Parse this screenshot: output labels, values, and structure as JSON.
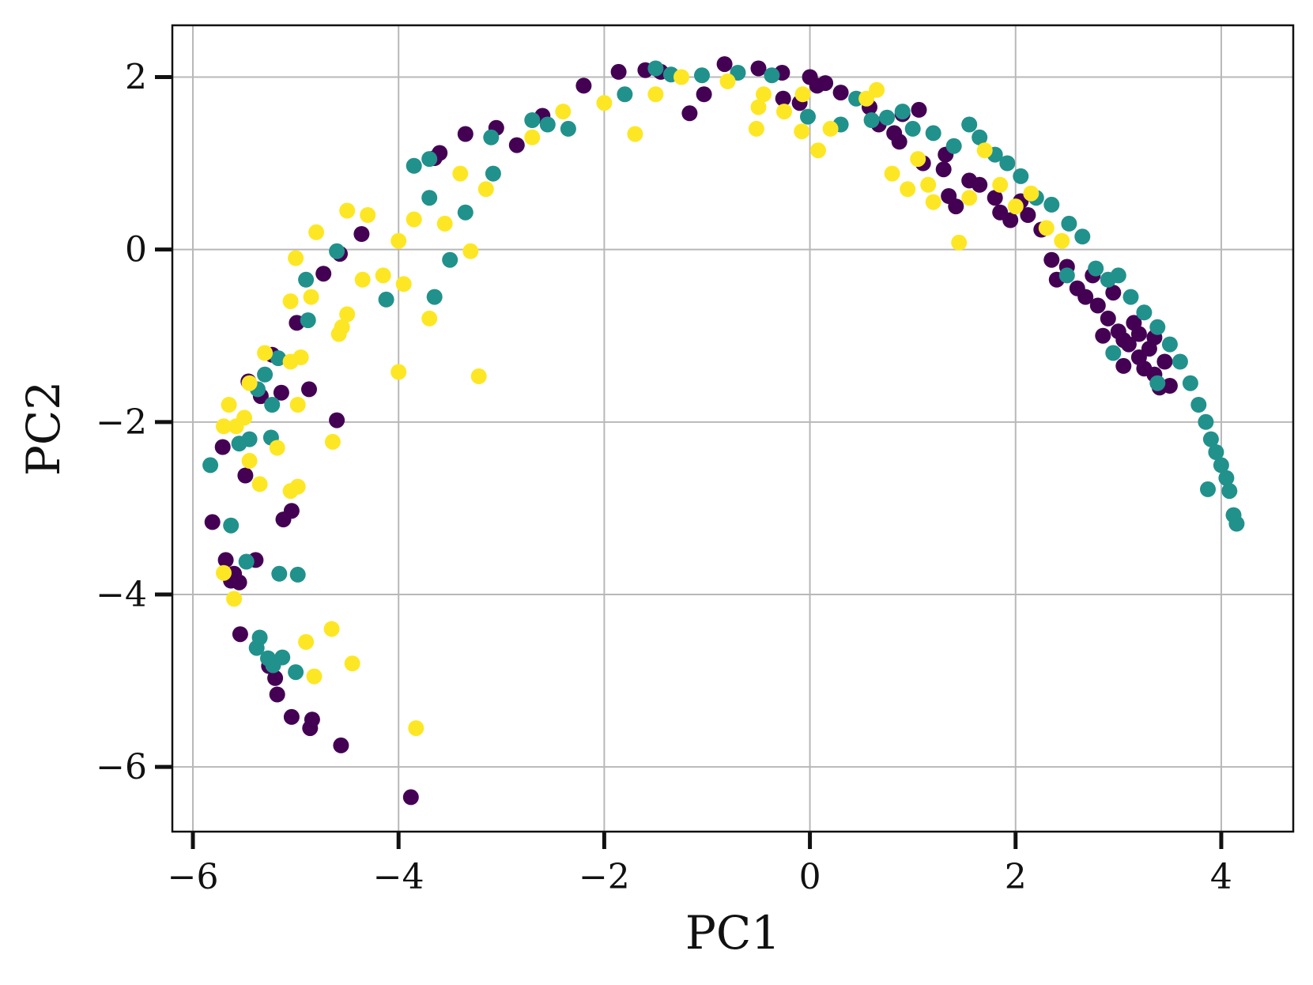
{
  "chart_data": {
    "type": "scatter",
    "title": "",
    "xlabel": "PC1",
    "ylabel": "PC2",
    "xlim": [
      -6.2,
      4.7
    ],
    "ylim": [
      -6.75,
      2.6
    ],
    "xticks": [
      -6,
      -4,
      -2,
      0,
      2,
      4
    ],
    "yticks": [
      -6,
      -4,
      -2,
      0,
      2
    ],
    "xtick_labels": [
      "−6",
      "−4",
      "−2",
      "0",
      "2",
      "4"
    ],
    "ytick_labels": [
      "−6",
      "−4",
      "−2",
      "0",
      "2"
    ],
    "grid": true,
    "legend": "none",
    "series": [
      {
        "color": "#440154",
        "points": [
          [
            -3.88,
            -6.35
          ],
          [
            -4.56,
            -5.75
          ],
          [
            -4.86,
            -5.55
          ],
          [
            -4.84,
            -5.45
          ],
          [
            -5.04,
            -5.42
          ],
          [
            -5.18,
            -5.16
          ],
          [
            -5.2,
            -4.97
          ],
          [
            -5.26,
            -4.83
          ],
          [
            -5.54,
            -4.46
          ],
          [
            -5.63,
            -3.84
          ],
          [
            -5.55,
            -3.86
          ],
          [
            -5.6,
            -3.76
          ],
          [
            -5.68,
            -3.6
          ],
          [
            -5.39,
            -3.6
          ],
          [
            -5.81,
            -3.16
          ],
          [
            -5.12,
            -3.13
          ],
          [
            -5.04,
            -3.03
          ],
          [
            -5.49,
            -2.62
          ],
          [
            -5.71,
            -2.29
          ],
          [
            -4.6,
            -1.98
          ],
          [
            -5.34,
            -1.7
          ],
          [
            -4.87,
            -1.62
          ],
          [
            -5.14,
            -1.66
          ],
          [
            -5.46,
            -1.53
          ],
          [
            -5.23,
            -1.22
          ],
          [
            -4.99,
            -0.85
          ],
          [
            -4.73,
            -0.28
          ],
          [
            -4.57,
            -0.05
          ],
          [
            -4.36,
            0.18
          ],
          [
            -3.65,
            1.06
          ],
          [
            -3.6,
            1.12
          ],
          [
            -3.35,
            1.34
          ],
          [
            -3.05,
            1.41
          ],
          [
            -2.85,
            1.21
          ],
          [
            -2.6,
            1.55
          ],
          [
            -2.2,
            1.9
          ],
          [
            -1.86,
            2.06
          ],
          [
            -1.6,
            2.08
          ],
          [
            -1.45,
            2.06
          ],
          [
            -1.17,
            1.58
          ],
          [
            -1.03,
            1.8
          ],
          [
            -0.83,
            2.15
          ],
          [
            -0.5,
            2.1
          ],
          [
            -0.27,
            2.05
          ],
          [
            -0.26,
            1.75
          ],
          [
            -0.1,
            1.7
          ],
          [
            0.0,
            2.0
          ],
          [
            0.07,
            1.9
          ],
          [
            0.15,
            1.93
          ],
          [
            0.3,
            1.82
          ],
          [
            0.58,
            1.65
          ],
          [
            0.67,
            1.45
          ],
          [
            0.82,
            1.35
          ],
          [
            0.87,
            1.25
          ],
          [
            0.9,
            1.57
          ],
          [
            1.06,
            1.62
          ],
          [
            1.1,
            1.0
          ],
          [
            1.32,
            1.1
          ],
          [
            1.3,
            0.93
          ],
          [
            1.35,
            0.62
          ],
          [
            1.42,
            0.5
          ],
          [
            1.55,
            0.8
          ],
          [
            1.65,
            0.75
          ],
          [
            1.8,
            0.6
          ],
          [
            1.85,
            0.43
          ],
          [
            1.95,
            0.34
          ],
          [
            2.05,
            0.56
          ],
          [
            2.12,
            0.4
          ],
          [
            2.25,
            0.23
          ],
          [
            2.35,
            -0.12
          ],
          [
            2.4,
            -0.35
          ],
          [
            2.5,
            -0.2
          ],
          [
            2.6,
            -0.45
          ],
          [
            2.68,
            -0.55
          ],
          [
            2.75,
            -0.3
          ],
          [
            2.8,
            -0.65
          ],
          [
            2.9,
            -0.8
          ],
          [
            2.95,
            -0.5
          ],
          [
            3.0,
            -0.95
          ],
          [
            3.05,
            -1.05
          ],
          [
            3.1,
            -1.1
          ],
          [
            3.15,
            -0.85
          ],
          [
            3.2,
            -1.25
          ],
          [
            3.25,
            -1.38
          ],
          [
            3.3,
            -1.15
          ],
          [
            3.35,
            -1.45
          ],
          [
            3.4,
            -1.6
          ],
          [
            3.45,
            -1.3
          ],
          [
            3.5,
            -1.58
          ],
          [
            3.05,
            -1.35
          ],
          [
            3.2,
            -0.98
          ],
          [
            2.85,
            -1.0
          ],
          [
            3.35,
            -1.02
          ]
        ]
      },
      {
        "color": "#21918c",
        "points": [
          [
            -5.0,
            -4.9
          ],
          [
            -5.13,
            -4.73
          ],
          [
            -5.27,
            -4.74
          ],
          [
            -5.38,
            -4.62
          ],
          [
            -5.35,
            -4.5
          ],
          [
            -5.22,
            -4.82
          ],
          [
            -5.16,
            -3.76
          ],
          [
            -4.98,
            -3.77
          ],
          [
            -5.48,
            -3.62
          ],
          [
            -5.63,
            -3.2
          ],
          [
            -5.83,
            -2.5
          ],
          [
            -5.45,
            -2.2
          ],
          [
            -5.24,
            -2.18
          ],
          [
            -5.55,
            -2.25
          ],
          [
            -5.23,
            -1.8
          ],
          [
            -5.37,
            -1.62
          ],
          [
            -5.3,
            -1.45
          ],
          [
            -5.17,
            -1.26
          ],
          [
            -4.88,
            -0.82
          ],
          [
            -4.9,
            -0.35
          ],
          [
            -4.6,
            -0.02
          ],
          [
            -4.12,
            -0.58
          ],
          [
            -3.65,
            -0.55
          ],
          [
            -3.5,
            -0.12
          ],
          [
            -3.35,
            0.43
          ],
          [
            -3.7,
            0.6
          ],
          [
            -3.85,
            0.97
          ],
          [
            -3.7,
            1.05
          ],
          [
            -3.08,
            0.88
          ],
          [
            -3.1,
            1.3
          ],
          [
            -2.7,
            1.5
          ],
          [
            -2.55,
            1.45
          ],
          [
            -2.35,
            1.4
          ],
          [
            -1.8,
            1.8
          ],
          [
            -1.5,
            2.1
          ],
          [
            -1.35,
            2.03
          ],
          [
            -1.05,
            2.02
          ],
          [
            -0.7,
            2.05
          ],
          [
            -0.37,
            2.02
          ],
          [
            -0.02,
            1.54
          ],
          [
            0.3,
            1.45
          ],
          [
            0.45,
            1.75
          ],
          [
            0.6,
            1.5
          ],
          [
            0.75,
            1.53
          ],
          [
            0.9,
            1.6
          ],
          [
            1.0,
            1.4
          ],
          [
            1.2,
            1.35
          ],
          [
            1.4,
            1.2
          ],
          [
            1.55,
            1.45
          ],
          [
            1.65,
            1.3
          ],
          [
            1.8,
            1.1
          ],
          [
            1.92,
            1.0
          ],
          [
            2.05,
            0.85
          ],
          [
            2.2,
            0.6
          ],
          [
            2.35,
            0.52
          ],
          [
            2.52,
            0.3
          ],
          [
            2.65,
            0.15
          ],
          [
            2.78,
            -0.22
          ],
          [
            2.9,
            -0.35
          ],
          [
            3.0,
            -0.3
          ],
          [
            3.12,
            -0.55
          ],
          [
            3.25,
            -0.73
          ],
          [
            3.38,
            -0.9
          ],
          [
            3.5,
            -1.1
          ],
          [
            3.6,
            -1.3
          ],
          [
            3.7,
            -1.55
          ],
          [
            3.78,
            -1.8
          ],
          [
            3.85,
            -2.0
          ],
          [
            3.9,
            -2.2
          ],
          [
            3.95,
            -2.35
          ],
          [
            4.0,
            -2.5
          ],
          [
            4.05,
            -2.65
          ],
          [
            4.08,
            -2.8
          ],
          [
            3.87,
            -2.78
          ],
          [
            4.12,
            -3.08
          ],
          [
            4.15,
            -3.18
          ],
          [
            2.5,
            -0.3
          ],
          [
            2.95,
            -1.2
          ],
          [
            3.38,
            -1.55
          ]
        ]
      },
      {
        "color": "#fde725",
        "points": [
          [
            -3.83,
            -5.55
          ],
          [
            -4.82,
            -4.95
          ],
          [
            -4.45,
            -4.8
          ],
          [
            -4.65,
            -4.4
          ],
          [
            -4.9,
            -4.55
          ],
          [
            -5.6,
            -4.05
          ],
          [
            -5.7,
            -3.75
          ],
          [
            -5.35,
            -2.72
          ],
          [
            -4.98,
            -2.75
          ],
          [
            -5.05,
            -2.8
          ],
          [
            -5.18,
            -2.3
          ],
          [
            -5.45,
            -2.45
          ],
          [
            -5.7,
            -2.05
          ],
          [
            -4.64,
            -2.23
          ],
          [
            -4.98,
            -1.8
          ],
          [
            -5.5,
            -1.95
          ],
          [
            -5.65,
            -1.8
          ],
          [
            -5.58,
            -2.05
          ],
          [
            -5.45,
            -1.55
          ],
          [
            -5.05,
            -1.3
          ],
          [
            -4.95,
            -1.25
          ],
          [
            -5.3,
            -1.2
          ],
          [
            -4.55,
            -0.9
          ],
          [
            -4.58,
            -0.98
          ],
          [
            -4.5,
            -0.75
          ],
          [
            -4.0,
            -1.42
          ],
          [
            -3.22,
            -1.47
          ],
          [
            -3.7,
            -0.8
          ],
          [
            -3.95,
            -0.4
          ],
          [
            -4.35,
            -0.35
          ],
          [
            -4.15,
            -0.3
          ],
          [
            -4.0,
            0.1
          ],
          [
            -3.3,
            -0.02
          ],
          [
            -3.55,
            0.3
          ],
          [
            -3.85,
            0.35
          ],
          [
            -4.3,
            0.4
          ],
          [
            -4.5,
            0.45
          ],
          [
            -4.8,
            0.2
          ],
          [
            -5.0,
            -0.1
          ],
          [
            -4.85,
            -0.55
          ],
          [
            -5.05,
            -0.6
          ],
          [
            -3.4,
            0.88
          ],
          [
            -3.15,
            0.7
          ],
          [
            -2.7,
            1.3
          ],
          [
            -2.4,
            1.6
          ],
          [
            -2.0,
            1.7
          ],
          [
            -1.7,
            1.34
          ],
          [
            -1.5,
            1.8
          ],
          [
            -1.25,
            2.0
          ],
          [
            -0.8,
            1.95
          ],
          [
            -0.52,
            1.4
          ],
          [
            -0.5,
            1.65
          ],
          [
            -0.45,
            1.8
          ],
          [
            -0.25,
            1.6
          ],
          [
            -0.07,
            1.8
          ],
          [
            -0.08,
            1.37
          ],
          [
            0.08,
            1.15
          ],
          [
            0.2,
            1.4
          ],
          [
            0.55,
            1.75
          ],
          [
            0.65,
            1.85
          ],
          [
            0.8,
            0.88
          ],
          [
            0.95,
            0.7
          ],
          [
            1.05,
            1.05
          ],
          [
            1.15,
            0.75
          ],
          [
            1.2,
            0.55
          ],
          [
            1.45,
            0.08
          ],
          [
            1.55,
            0.6
          ],
          [
            1.7,
            1.15
          ],
          [
            1.85,
            0.75
          ],
          [
            2.0,
            0.5
          ],
          [
            2.15,
            0.65
          ],
          [
            2.3,
            0.25
          ],
          [
            2.45,
            0.1
          ]
        ]
      }
    ]
  }
}
